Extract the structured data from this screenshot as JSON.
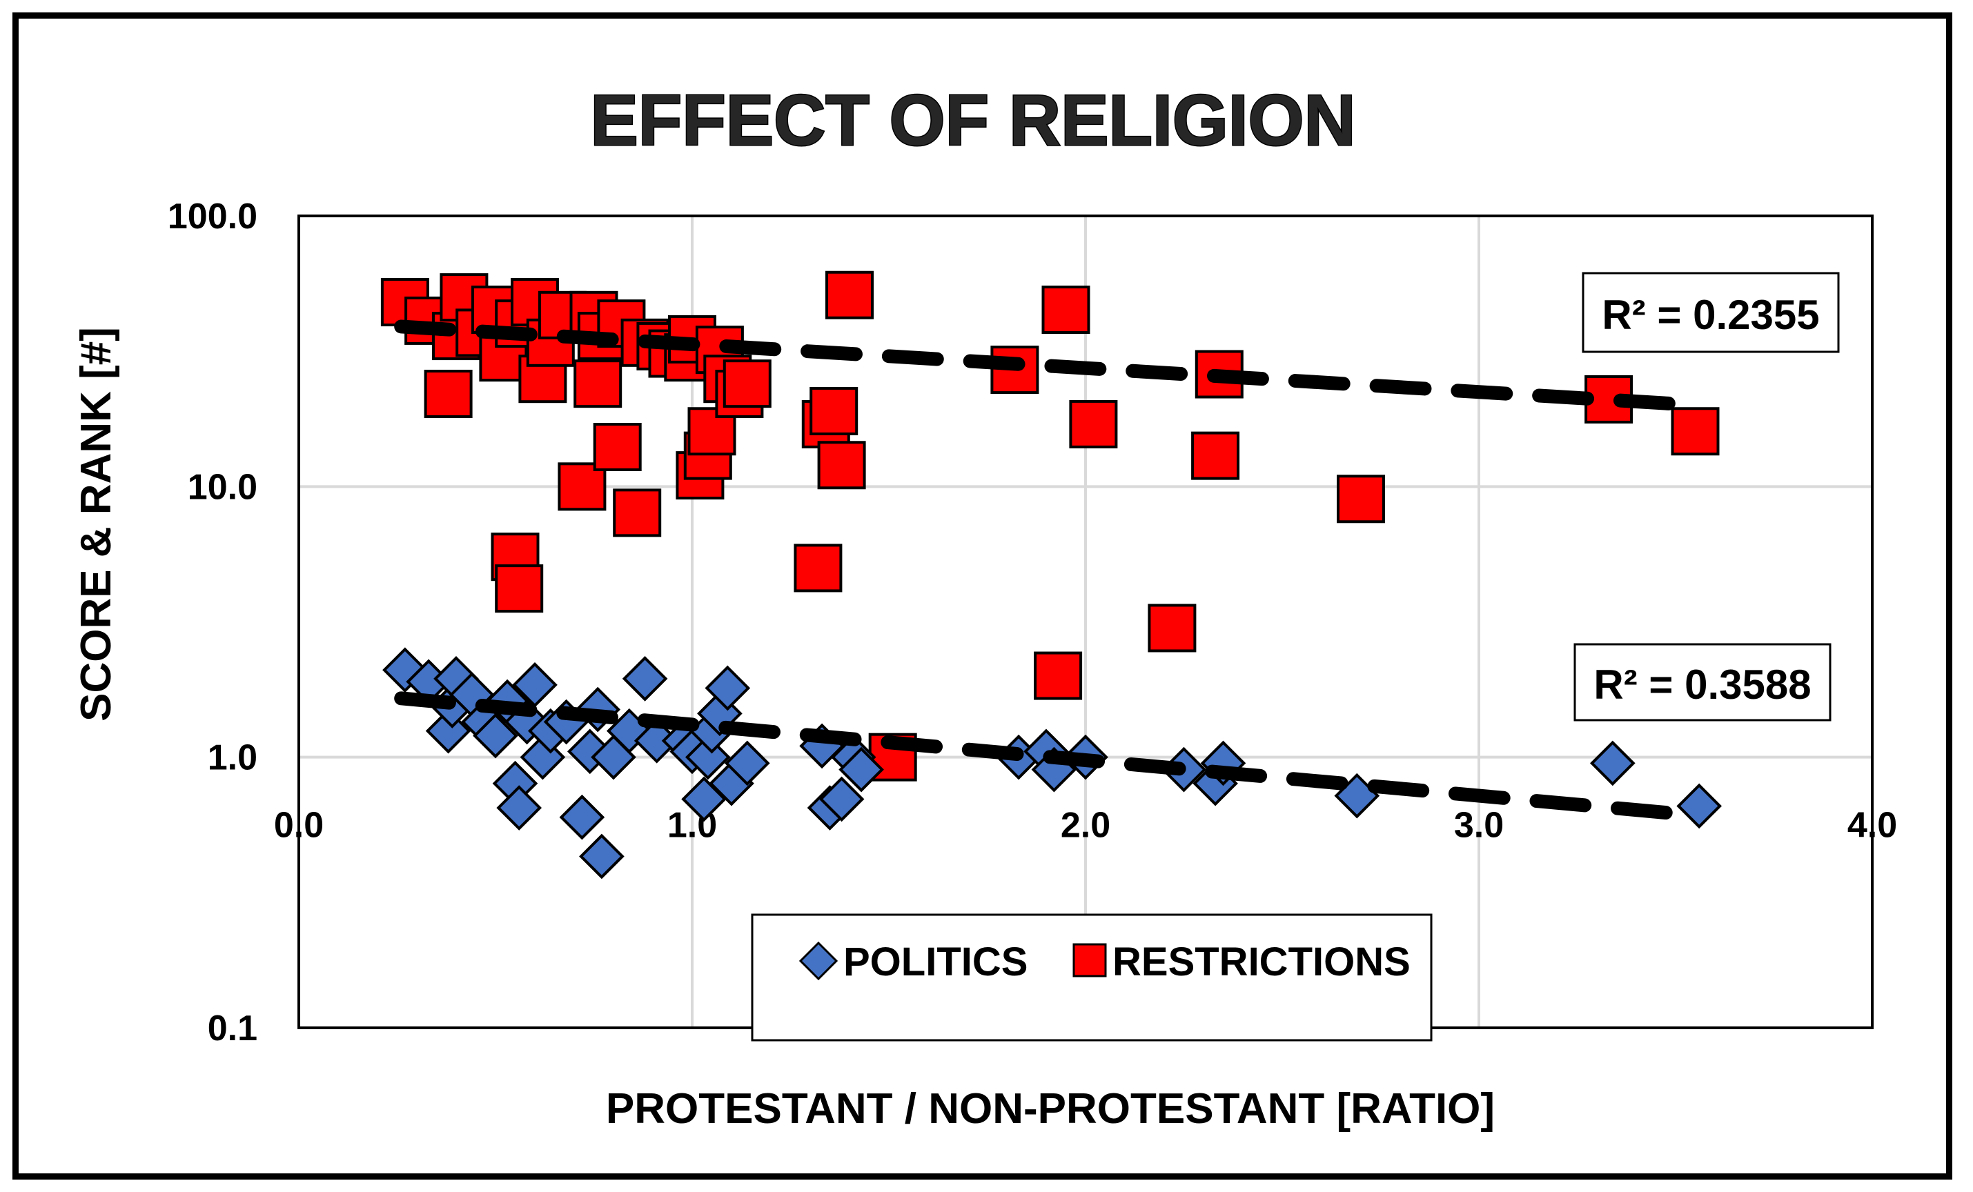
{
  "colors": {
    "politics": "#4472C4",
    "restrictions": "#FF0000",
    "trend": "#000000",
    "grid": "#D9D9D9"
  },
  "chart_data": {
    "type": "scatter",
    "title": "EFFECT OF RELIGION",
    "xlabel": "PROTESTANT / NON-PROTESTANT [RATIO]",
    "ylabel": "SCORE & RANK [#]",
    "xlim": [
      0,
      4
    ],
    "ylim": [
      0.1,
      100
    ],
    "yscale": "log",
    "grid": true,
    "x_ticks": [
      "0.0",
      "1.0",
      "2.0",
      "3.0",
      "4.0"
    ],
    "y_ticks": [
      "0.1",
      "1.0",
      "10.0",
      "100.0"
    ],
    "legend": {
      "placement": "bottom-center",
      "items": [
        "POLITICS",
        "RESTRICTIONS"
      ]
    },
    "series": [
      {
        "name": "POLITICS",
        "marker": "diamond",
        "r2_label": "R² = 0.3588",
        "trend_start": [
          0.26,
          1.65
        ],
        "trend_end": [
          3.55,
          0.61
        ],
        "points": [
          [
            0.27,
            2.1
          ],
          [
            0.33,
            1.9
          ],
          [
            0.38,
            1.25
          ],
          [
            0.39,
            1.55
          ],
          [
            0.4,
            1.95
          ],
          [
            0.44,
            1.7
          ],
          [
            0.47,
            1.35
          ],
          [
            0.5,
            1.2
          ],
          [
            0.53,
            1.6
          ],
          [
            0.55,
            0.8
          ],
          [
            0.56,
            0.65
          ],
          [
            0.58,
            1.35
          ],
          [
            0.6,
            1.85
          ],
          [
            0.62,
            1.0
          ],
          [
            0.64,
            1.25
          ],
          [
            0.68,
            1.35
          ],
          [
            0.72,
            0.6
          ],
          [
            0.74,
            1.05
          ],
          [
            0.76,
            1.5
          ],
          [
            0.77,
            0.43
          ],
          [
            0.8,
            1.0
          ],
          [
            0.84,
            1.25
          ],
          [
            0.88,
            1.95
          ],
          [
            0.91,
            1.15
          ],
          [
            0.98,
            1.15
          ],
          [
            1.0,
            1.05
          ],
          [
            1.03,
            0.7
          ],
          [
            1.04,
            1.0
          ],
          [
            1.05,
            1.25
          ],
          [
            1.07,
            1.45
          ],
          [
            1.09,
            1.8
          ],
          [
            1.1,
            0.8
          ],
          [
            1.14,
            0.95
          ],
          [
            1.33,
            1.1
          ],
          [
            1.35,
            0.65
          ],
          [
            1.38,
            0.7
          ],
          [
            1.41,
            1.0
          ],
          [
            1.43,
            0.9
          ],
          [
            1.83,
            1.0
          ],
          [
            1.9,
            1.05
          ],
          [
            1.92,
            0.9
          ],
          [
            2.0,
            1.0
          ],
          [
            2.25,
            0.9
          ],
          [
            2.33,
            0.8
          ],
          [
            2.35,
            0.95
          ],
          [
            2.69,
            0.72
          ],
          [
            3.34,
            0.95
          ],
          [
            3.56,
            0.66
          ]
        ]
      },
      {
        "name": "RESTRICTIONS",
        "marker": "square",
        "r2_label": "R² = 0.2355",
        "trend_start": [
          0.26,
          39
        ],
        "trend_end": [
          3.55,
          20
        ],
        "points": [
          [
            0.27,
            48
          ],
          [
            0.33,
            41
          ],
          [
            0.38,
            22
          ],
          [
            0.4,
            36
          ],
          [
            0.42,
            50
          ],
          [
            0.46,
            37
          ],
          [
            0.5,
            45
          ],
          [
            0.52,
            30
          ],
          [
            0.56,
            40
          ],
          [
            0.6,
            48
          ],
          [
            0.62,
            25
          ],
          [
            0.64,
            34
          ],
          [
            0.67,
            43
          ],
          [
            0.72,
            10
          ],
          [
            0.75,
            43
          ],
          [
            0.76,
            24
          ],
          [
            0.77,
            36
          ],
          [
            0.81,
            14
          ],
          [
            0.82,
            40
          ],
          [
            0.86,
            8
          ],
          [
            0.88,
            34
          ],
          [
            0.92,
            33
          ],
          [
            0.95,
            31
          ],
          [
            0.99,
            30
          ],
          [
            1.0,
            35
          ],
          [
            1.02,
            11
          ],
          [
            1.04,
            13
          ],
          [
            1.05,
            16
          ],
          [
            1.07,
            32
          ],
          [
            1.09,
            25
          ],
          [
            1.12,
            22
          ],
          [
            1.14,
            24
          ],
          [
            0.55,
            5.5
          ],
          [
            0.56,
            4.2
          ],
          [
            1.32,
            5.0
          ],
          [
            1.34,
            17
          ],
          [
            1.36,
            19
          ],
          [
            1.38,
            12
          ],
          [
            1.4,
            51
          ],
          [
            1.51,
            1.0
          ],
          [
            1.82,
            27
          ],
          [
            1.93,
            2.0
          ],
          [
            1.95,
            45
          ],
          [
            2.02,
            17
          ],
          [
            2.22,
            3.0
          ],
          [
            2.33,
            13
          ],
          [
            2.34,
            26
          ],
          [
            2.7,
            9.0
          ],
          [
            3.33,
            21
          ],
          [
            3.55,
            16
          ]
        ]
      }
    ]
  }
}
